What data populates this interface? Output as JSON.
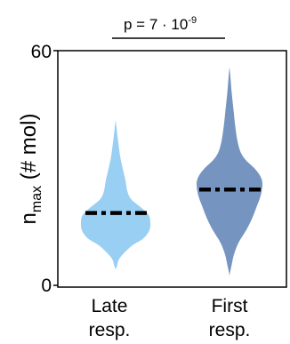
{
  "chart_data": {
    "type": "violin",
    "ylabel_main": "n",
    "ylabel_sub": "max",
    "ylabel_rest": " (# mol)",
    "ylim": [
      0,
      60
    ],
    "yticks": [
      "0",
      "60"
    ],
    "categories": [
      {
        "line1": "Late",
        "line2": "resp.",
        "color": "#9ACFF4",
        "median": 18.5
      },
      {
        "line1": "First",
        "line2": "resp.",
        "color": "#7594BF",
        "median": 24.5
      }
    ],
    "distributions": [
      [
        [
          5,
          0.04
        ],
        [
          7,
          0.12
        ],
        [
          10,
          0.45
        ],
        [
          12,
          0.8
        ],
        [
          14,
          0.97
        ],
        [
          16,
          1.0
        ],
        [
          18,
          0.95
        ],
        [
          20,
          0.72
        ],
        [
          22,
          0.45
        ],
        [
          24,
          0.34
        ],
        [
          27,
          0.28
        ],
        [
          30,
          0.2
        ],
        [
          33,
          0.13
        ],
        [
          37,
          0.07
        ],
        [
          40,
          0.03
        ],
        [
          41.5,
          0.01
        ]
      ],
      [
        [
          3,
          0.01
        ],
        [
          5,
          0.06
        ],
        [
          8,
          0.14
        ],
        [
          11,
          0.28
        ],
        [
          14,
          0.5
        ],
        [
          17,
          0.68
        ],
        [
          20,
          0.82
        ],
        [
          23,
          0.95
        ],
        [
          26,
          1.0
        ],
        [
          28,
          0.93
        ],
        [
          30,
          0.75
        ],
        [
          32,
          0.5
        ],
        [
          34,
          0.34
        ],
        [
          37,
          0.24
        ],
        [
          41,
          0.17
        ],
        [
          45,
          0.12
        ],
        [
          49,
          0.07
        ],
        [
          53,
          0.03
        ],
        [
          55,
          0.01
        ]
      ]
    ],
    "annotation": {
      "p_prefix": "p = 7 · 10",
      "p_exponent": "-9"
    }
  }
}
